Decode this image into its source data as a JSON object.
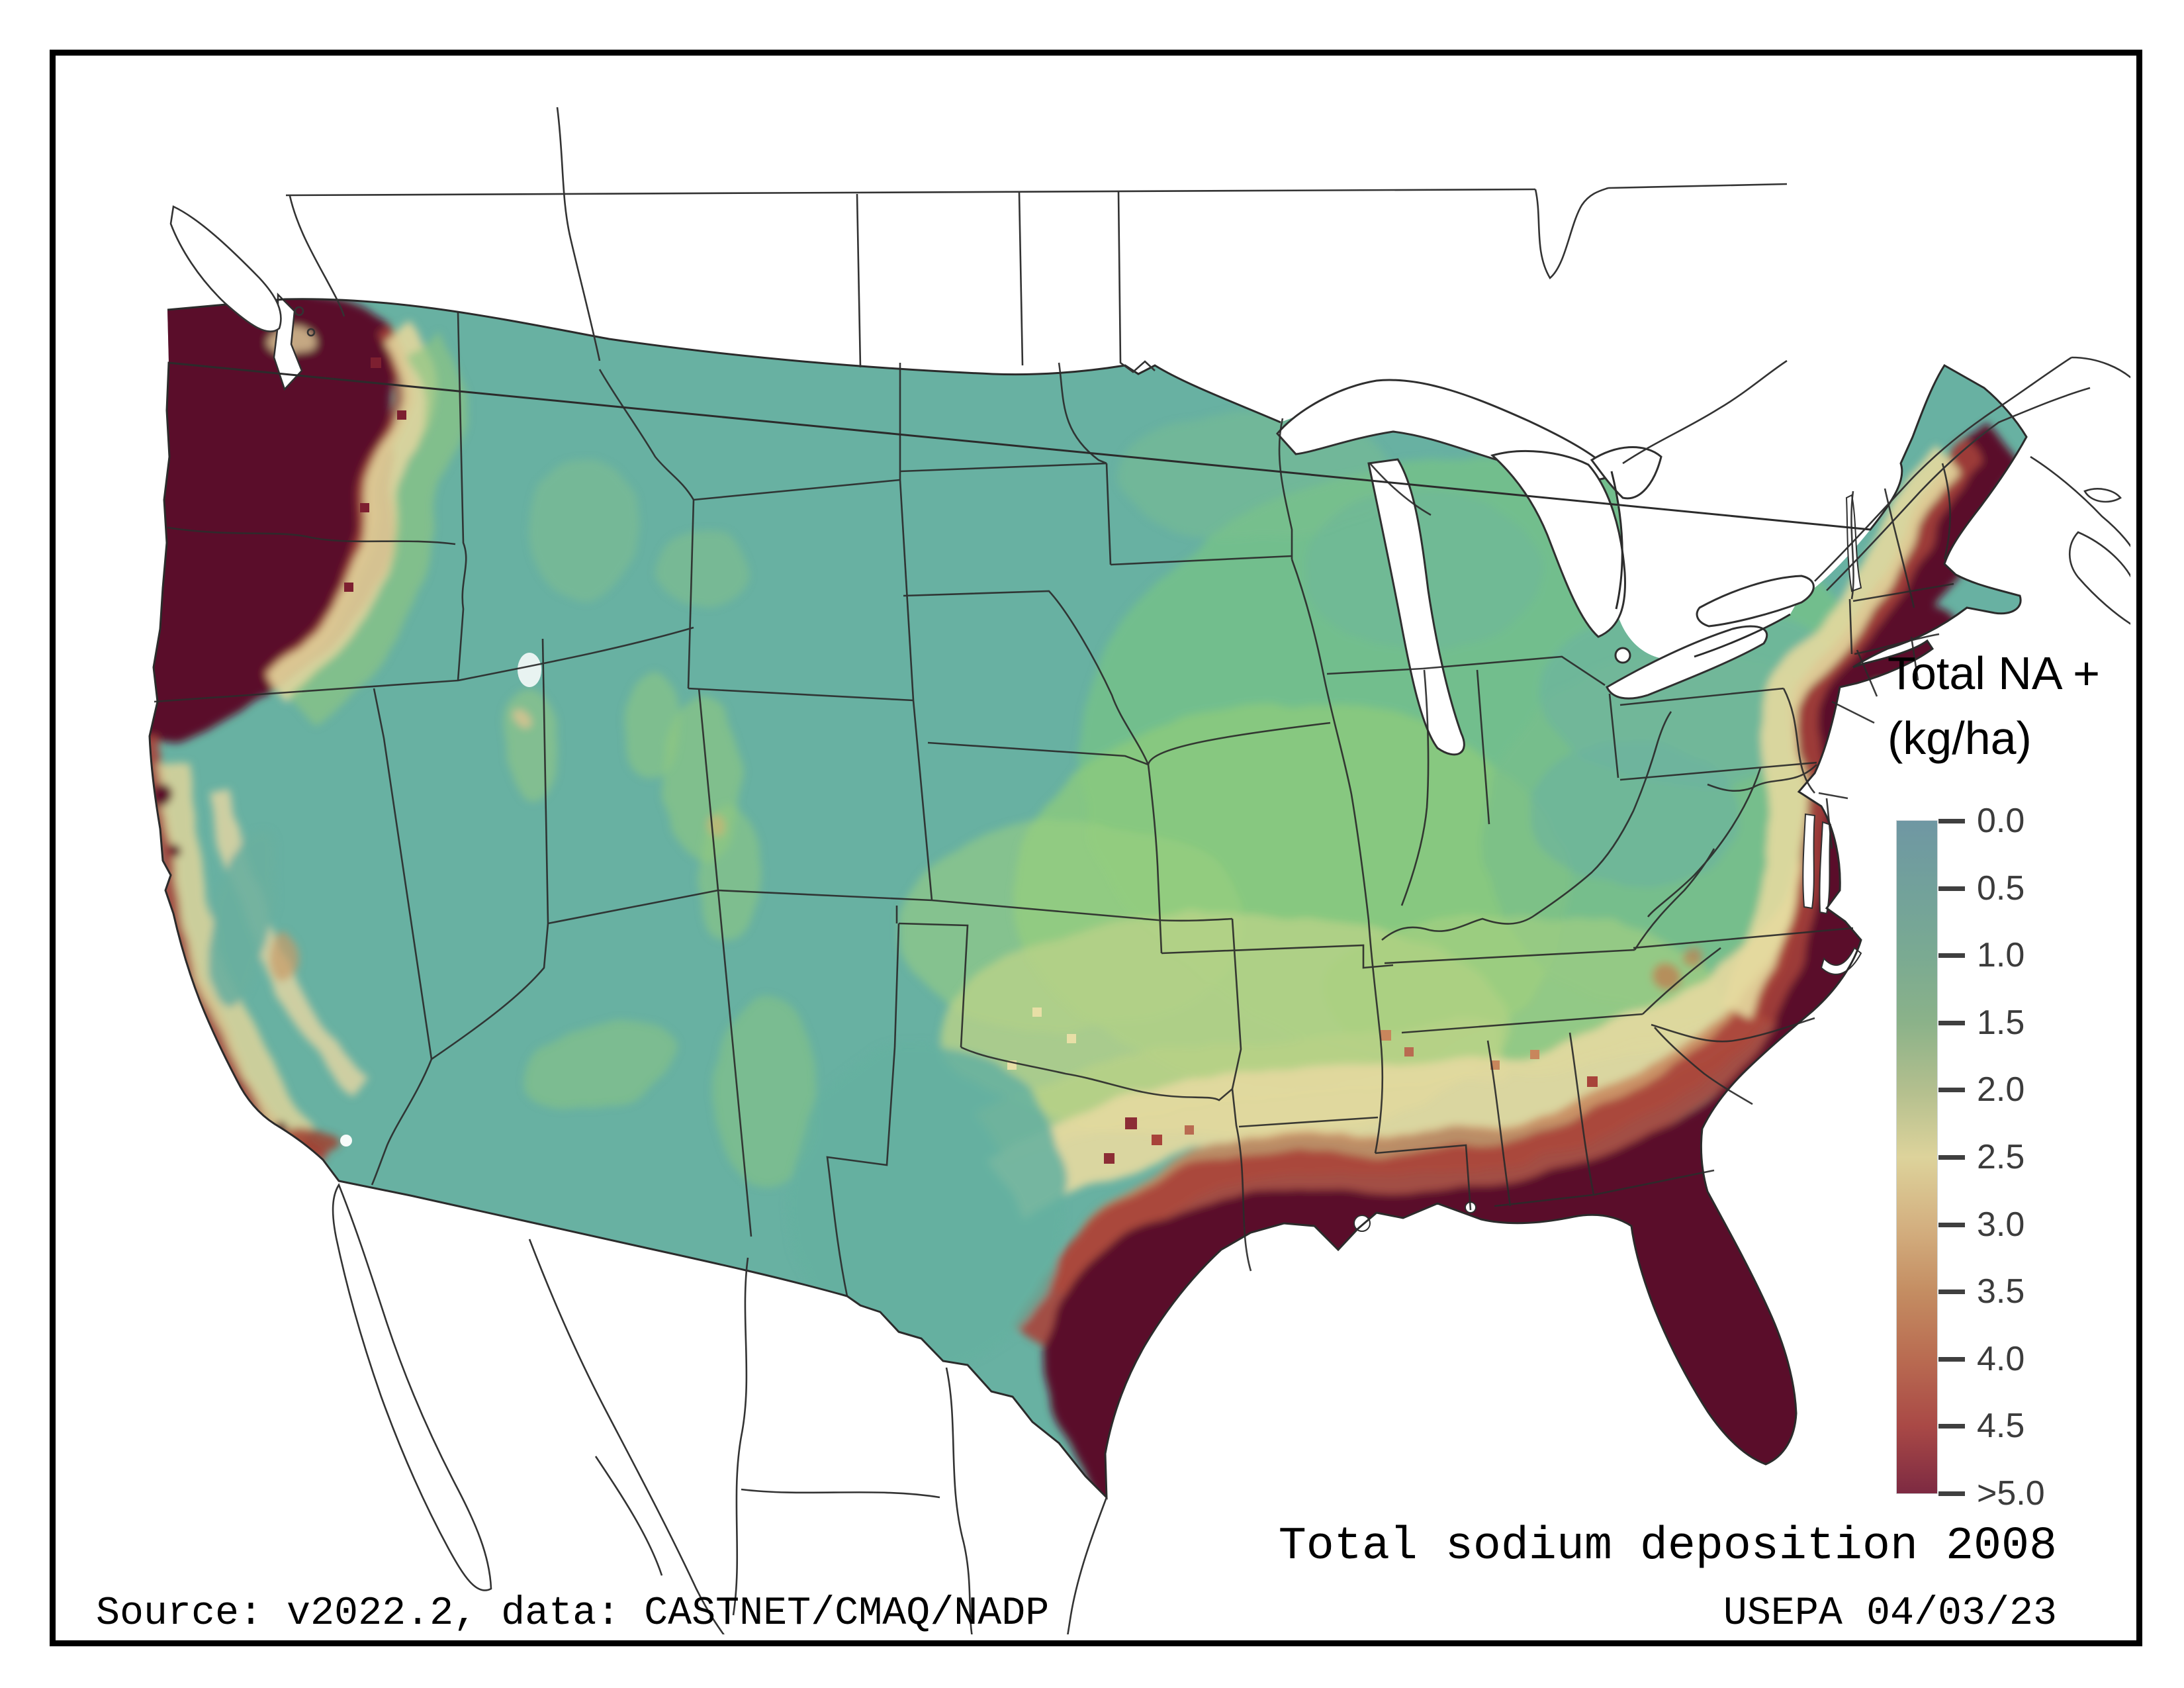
{
  "figure": {
    "legend": {
      "title_line1": "Total NA +",
      "title_line2": "(kg/ha)",
      "units": "kg/ha",
      "ticks": [
        "0.0",
        "0.5",
        "1.0",
        "1.5",
        "2.0",
        "2.5",
        "3.0",
        "3.5",
        "4.0",
        "4.5",
        ">5.0"
      ],
      "gradient": [
        "#6f97a3",
        "#72a19b",
        "#7aaa92",
        "#8bb289",
        "#b3bf8e",
        "#ddd39b",
        "#d4b181",
        "#c48d62",
        "#b96b51",
        "#a94946",
        "#7d2a42"
      ]
    },
    "captions": {
      "title": "Total sodium deposition 2008",
      "source": "Source: v2022.2, data: CASTNET/CMAQ/NADP",
      "agency_date": "USEPA 04/03/23"
    },
    "map_palette": {
      "base_teal": "#68b1a2",
      "green": "#74c189",
      "light_green": "#9ccf7f",
      "yellow_green": "#b9d288",
      "khaki": "#e4d99f",
      "tan": "#d4b181",
      "orange": "#c8865c",
      "red": "#a8433a",
      "dark_red": "#8c2d35",
      "maroon_over": "#5a0e2b",
      "boundary_line": "#2b2b2b",
      "water_land_outside": "#ffffff"
    }
  },
  "chart_data": {
    "type": "heatmap",
    "title": "Total sodium deposition 2008",
    "units": "kg/ha",
    "colorbar_label": "Total NA + (kg/ha)",
    "colorbar_ticks": [
      0.0,
      0.5,
      1.0,
      1.5,
      2.0,
      2.5,
      3.0,
      3.5,
      4.0,
      4.5,
      5.0
    ],
    "colorbar_over_label": ">5.0",
    "colorbar_range": [
      0.0,
      5.0
    ],
    "legend_position": "right",
    "geography": "Conterminous United States (state boundaries shown; Canada and Mexico unshaded)",
    "regions": [
      {
        "name": "Washington / Oregon coast and Puget lowlands",
        "value_kg_ha": ">5.0"
      },
      {
        "name": "California coastal strip (SF Bay, Monterey, Pt. Conception, LA)",
        "value_kg_ha": "3.5 to >5.0"
      },
      {
        "name": "California Central Valley fringe / Sierra foothills",
        "value_kg_ha": "2.0-3.0"
      },
      {
        "name": "Interior West (Great Basin, Rockies, Colorado Plateau)",
        "value_kg_ha": "0.5-1.0"
      },
      {
        "name": "Northern Plains (MT, ND, SD, NE, west TX)",
        "value_kg_ha": "0.5-1.0"
      },
      {
        "name": "Midwest (IA, IL, IN, OH, KY)",
        "value_kg_ha": "1.0-1.5"
      },
      {
        "name": "Mid-South transition band (OK, AR, TN, north MS/AL/GA)",
        "value_kg_ha": "2.0-3.5"
      },
      {
        "name": "Gulf Coast band (south TX through LA, MS, AL)",
        "value_kg_ha": ">5.0"
      },
      {
        "name": "Florida (entire peninsula)",
        "value_kg_ha": ">5.0"
      },
      {
        "name": "Atlantic coastal plain (GA, SC, NC, Delmarva, NJ)",
        "value_kg_ha": ">5.0"
      },
      {
        "name": "Coastal New England and Maine coast",
        "value_kg_ha": ">5.0"
      },
      {
        "name": "Interior Northeast (upstate NY, PA, VT/NH interior)",
        "value_kg_ha": "0.5-1.5"
      }
    ]
  }
}
